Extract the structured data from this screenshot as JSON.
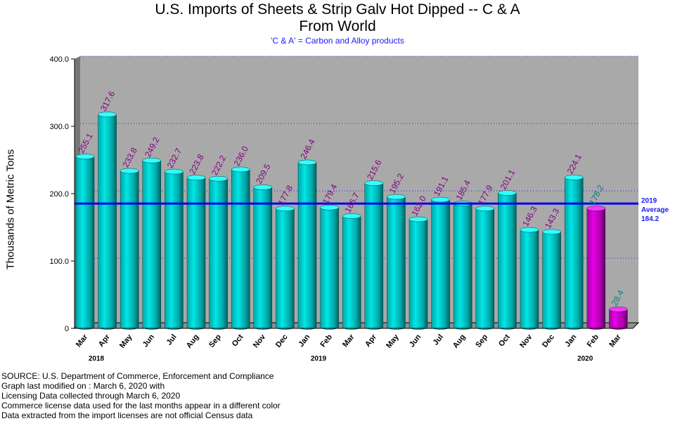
{
  "chart_data": {
    "type": "bar",
    "title": "U.S. Imports of Sheets & Strip Galv Hot Dipped -- C & A",
    "title2": "From World",
    "subtitle": "'C & A' = Carbon and Alloy products",
    "ylabel": "Thousands of Metric Tons",
    "ylim": [
      0,
      400
    ],
    "yticks": [
      "0",
      "100.0",
      "200.0",
      "300.0",
      "400.0"
    ],
    "categories": [
      "Mar",
      "Apr",
      "May",
      "Jun",
      "Jul",
      "Aug",
      "Sep",
      "Oct",
      "Nov",
      "Dec",
      "Jan",
      "Feb",
      "Mar",
      "Apr",
      "May",
      "Jun",
      "Jul",
      "Aug",
      "Sep",
      "Oct",
      "Nov",
      "Dec",
      "Jan",
      "Feb",
      "Mar"
    ],
    "values": [
      255.1,
      317.6,
      233.8,
      249.2,
      232.7,
      223.8,
      222.2,
      236.0,
      209.5,
      177.8,
      246.4,
      179.4,
      166.7,
      215.6,
      195.2,
      162.0,
      191.1,
      185.4,
      177.9,
      201.1,
      146.3,
      143.3,
      224.1,
      178.2,
      28.4
    ],
    "labels": [
      "255.1",
      "317.6",
      "233.8",
      "249.2",
      "232.7",
      "223.8",
      "222.2",
      "236.0",
      "209.5",
      "177.8",
      "246.4",
      "179.4",
      "166.7",
      "215.6",
      "195.2",
      "162.0",
      "191.1",
      "185.4",
      "177.9",
      "201.1",
      "146.3",
      "143.3",
      "224.1",
      "178.2",
      "28.4"
    ],
    "license_data_start_index": 23,
    "years": [
      {
        "label": "2018",
        "at_index": 0
      },
      {
        "label": "2019",
        "at_index": 10
      },
      {
        "label": "2020",
        "at_index": 22
      }
    ],
    "average": {
      "value": 184.2,
      "line1": "2019",
      "line2": "Average",
      "line3": "184.2"
    },
    "grid": "dotted horizontal",
    "colors": {
      "census_bar": "#00cccc",
      "license_bar": "#cc00cc",
      "census_label": "#800080",
      "license_label": "#008080",
      "average_line": "#0000ee",
      "plot_background": "#a9a9a9"
    }
  },
  "footer": {
    "line1": "SOURCE: U.S. Department of Commerce, Enforcement and Compliance",
    "line2": "Graph last modified on : March 6, 2020      with",
    "line3": "Licensing Data collected through March 6, 2020",
    "line4": "Commerce license data used for the last months appear in a different color",
    "line5": "Data extracted from the import licenses are not official Census data"
  }
}
